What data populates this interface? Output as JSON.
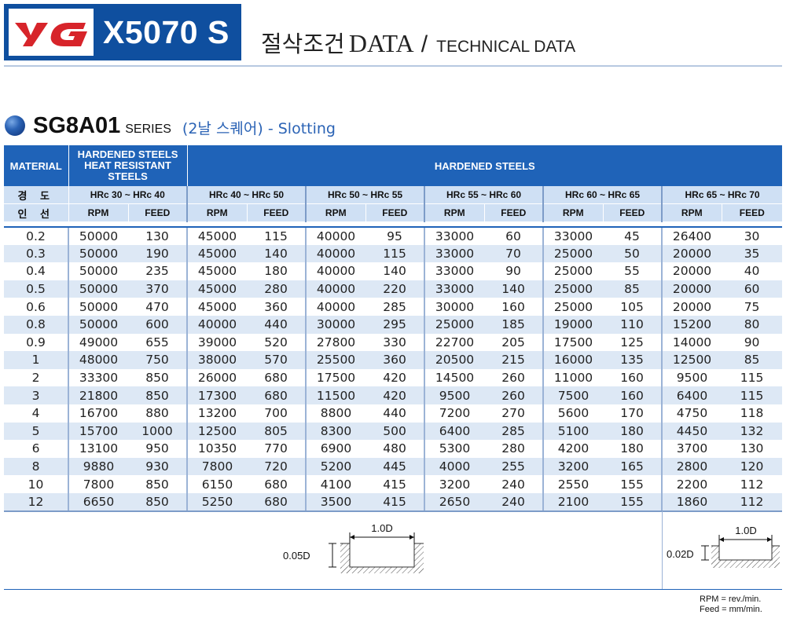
{
  "header": {
    "logo_text": "YG",
    "model": "X5070 S",
    "title_ko": "절삭조건",
    "title_data": "DATA",
    "title_slash": "/",
    "title_en": "TECHNICAL DATA",
    "brand_color": "#0f4f9f",
    "logo_color": "#d7242a"
  },
  "series": {
    "name": "SG8A01",
    "word": "SERIES",
    "description": "(2날 스퀘어) - Slotting"
  },
  "table": {
    "material_label": "MATERIAL",
    "group1_label": "HARDENED STEELS HEAT RESISTANT STEELS",
    "group2_label": "HARDENED STEELS",
    "hardness_label": "경 도",
    "diameter_label": "인 선",
    "hardness_ranges": [
      "HRc 30 ~ HRc 40",
      "HRc 40 ~ HRc 50",
      "HRc 50 ~ HRc 55",
      "HRc 55 ~ HRc 60",
      "HRc 60 ~ HRc 65",
      "HRc 65 ~ HRc 70"
    ],
    "rpm_label": "RPM",
    "feed_label": "FEED",
    "rows": [
      [
        "0.2",
        "50000",
        "130",
        "45000",
        "115",
        "40000",
        "95",
        "33000",
        "60",
        "33000",
        "45",
        "26400",
        "30"
      ],
      [
        "0.3",
        "50000",
        "190",
        "45000",
        "140",
        "40000",
        "115",
        "33000",
        "70",
        "25000",
        "50",
        "20000",
        "35"
      ],
      [
        "0.4",
        "50000",
        "235",
        "45000",
        "180",
        "40000",
        "140",
        "33000",
        "90",
        "25000",
        "55",
        "20000",
        "40"
      ],
      [
        "0.5",
        "50000",
        "370",
        "45000",
        "280",
        "40000",
        "220",
        "33000",
        "140",
        "25000",
        "85",
        "20000",
        "60"
      ],
      [
        "0.6",
        "50000",
        "470",
        "45000",
        "360",
        "40000",
        "285",
        "30000",
        "160",
        "25000",
        "105",
        "20000",
        "75"
      ],
      [
        "0.8",
        "50000",
        "600",
        "40000",
        "440",
        "30000",
        "295",
        "25000",
        "185",
        "19000",
        "110",
        "15200",
        "80"
      ],
      [
        "0.9",
        "49000",
        "655",
        "39000",
        "520",
        "27800",
        "330",
        "22700",
        "205",
        "17500",
        "125",
        "14000",
        "90"
      ],
      [
        "1",
        "48000",
        "750",
        "38000",
        "570",
        "25500",
        "360",
        "20500",
        "215",
        "16000",
        "135",
        "12500",
        "85"
      ],
      [
        "2",
        "33300",
        "850",
        "26000",
        "680",
        "17500",
        "420",
        "14500",
        "260",
        "11000",
        "160",
        "9500",
        "115"
      ],
      [
        "3",
        "21800",
        "850",
        "17300",
        "680",
        "11500",
        "420",
        "9500",
        "260",
        "7500",
        "160",
        "6400",
        "115"
      ],
      [
        "4",
        "16700",
        "880",
        "13200",
        "700",
        "8800",
        "440",
        "7200",
        "270",
        "5600",
        "170",
        "4750",
        "118"
      ],
      [
        "5",
        "15700",
        "1000",
        "12500",
        "805",
        "8300",
        "500",
        "6400",
        "285",
        "5100",
        "180",
        "4450",
        "132"
      ],
      [
        "6",
        "13100",
        "950",
        "10350",
        "770",
        "6900",
        "480",
        "5300",
        "280",
        "4200",
        "180",
        "3700",
        "130"
      ],
      [
        "8",
        "9880",
        "930",
        "7800",
        "720",
        "5200",
        "445",
        "4000",
        "255",
        "3200",
        "165",
        "2800",
        "120"
      ],
      [
        "10",
        "7800",
        "850",
        "6150",
        "680",
        "4100",
        "415",
        "3200",
        "240",
        "2550",
        "155",
        "2200",
        "112"
      ],
      [
        "12",
        "6650",
        "850",
        "5250",
        "680",
        "3500",
        "415",
        "2650",
        "240",
        "2100",
        "155",
        "1860",
        "112"
      ]
    ]
  },
  "diagrams": {
    "left_width": "1.0D",
    "left_depth": "0.05D",
    "right_width": "1.0D",
    "right_depth": "0.02D"
  },
  "units": {
    "rpm": "RPM = rev./min.",
    "feed": "Feed = mm/min."
  }
}
